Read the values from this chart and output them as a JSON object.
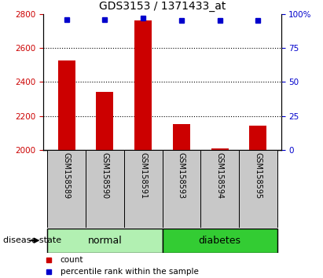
{
  "title": "GDS3153 / 1371433_at",
  "samples": [
    "GSM158589",
    "GSM158590",
    "GSM158591",
    "GSM158593",
    "GSM158594",
    "GSM158595"
  ],
  "counts": [
    2525,
    2340,
    2760,
    2155,
    2010,
    2145
  ],
  "percentiles": [
    96,
    96,
    97,
    95,
    95,
    95
  ],
  "ylim_left": [
    2000,
    2800
  ],
  "ylim_right": [
    0,
    100
  ],
  "yticks_left": [
    2000,
    2200,
    2400,
    2600,
    2800
  ],
  "yticks_right": [
    0,
    25,
    50,
    75,
    100
  ],
  "yticklabels_right": [
    "0",
    "25",
    "50",
    "75",
    "100%"
  ],
  "bar_color": "#cc0000",
  "dot_color": "#0000cc",
  "bar_width": 0.45,
  "group_normal_color": "#b2f0b2",
  "group_diabetes_color": "#33cc33",
  "background_xticklabel": "#c8c8c8",
  "left_label_color": "#cc0000",
  "right_label_color": "#0000cc",
  "disease_state_label": "disease state",
  "normal_label": "normal",
  "diabetes_label": "diabetes",
  "legend_count_label": "count",
  "legend_pct_label": "percentile rank within the sample"
}
